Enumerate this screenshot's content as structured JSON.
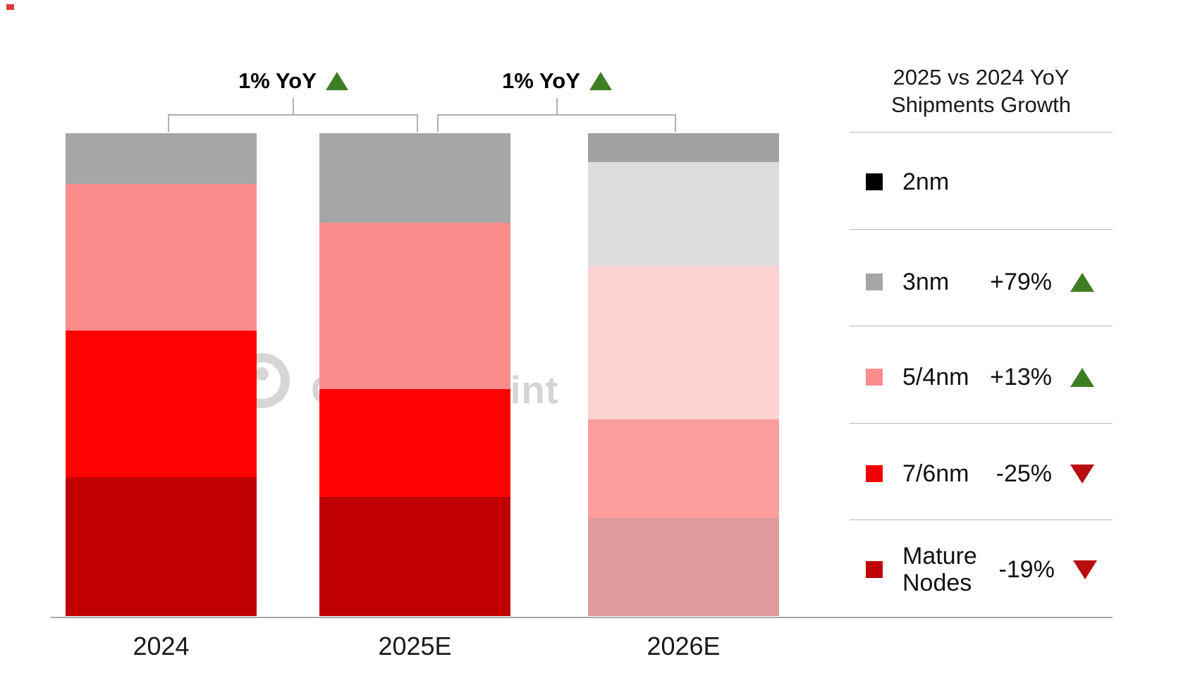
{
  "watermark": {
    "text": "Counterpoint"
  },
  "decor": {
    "corner_mark_color": "#e23b3b"
  },
  "colors": {
    "up_triangle": "#3f7d23",
    "down_triangle": "#b90d11",
    "bracket_line": "#b0b0b0",
    "axis_line": "#a8a8a8",
    "divider": "#b7b7b7",
    "node_colors": {
      "2nm": "#000000",
      "3nm": "#a6a6a6",
      "5/4nm": "#fc8d8d",
      "7/6nm": "#fe0101",
      "Mature Nodes": "#c00000"
    },
    "node_colors_faded": {
      "2nm": "#a1a1a1",
      "3nm": "#dddddd",
      "5/4nm": "#ffd2d3",
      "7/6nm": "#fc9d9d",
      "Mature Nodes": "#e09a9d"
    }
  },
  "growth_callouts": [
    {
      "text": "1% YoY",
      "direction": "up",
      "between": [
        "2024",
        "2025E"
      ]
    },
    {
      "text": "1% YoY",
      "direction": "up",
      "between": [
        "2025E",
        "2026E"
      ]
    }
  ],
  "legend": {
    "title_line1": "2025 vs 2024 YoY",
    "title_line2": "Shipments  Growth",
    "rows": [
      {
        "node": "2nm",
        "node_lines": [
          "2nm"
        ],
        "swatch": "#000000",
        "value": "",
        "direction": ""
      },
      {
        "node": "3nm",
        "node_lines": [
          "3nm"
        ],
        "swatch": "#a6a6a6",
        "value": "+79%",
        "direction": "up"
      },
      {
        "node": "5/4nm",
        "node_lines": [
          "5/4nm"
        ],
        "swatch": "#fc8d8d",
        "value": "+13%",
        "direction": "up"
      },
      {
        "node": "7/6nm",
        "node_lines": [
          "7/6nm"
        ],
        "swatch": "#f00001",
        "value": "-25%",
        "direction": "down"
      },
      {
        "node": "Mature Nodes",
        "node_lines": [
          "Mature",
          "Nodes"
        ],
        "swatch": "#c00006",
        "value": "-19%",
        "direction": "down"
      }
    ]
  },
  "chart_data": {
    "type": "bar",
    "stacked": true,
    "title": "",
    "categories": [
      "2024",
      "2025E",
      "2026E"
    ],
    "unit": "share of total bar height (%)",
    "series": [
      {
        "name": "2nm",
        "values": [
          0.0,
          0.0,
          6.0
        ]
      },
      {
        "name": "3nm",
        "values": [
          10.5,
          18.5,
          21.5
        ]
      },
      {
        "name": "5/4nm",
        "values": [
          30.4,
          34.5,
          31.8
        ]
      },
      {
        "name": "7/6nm",
        "values": [
          30.4,
          22.3,
          20.4
        ]
      },
      {
        "name": "Mature Nodes",
        "values": [
          28.8,
          24.7,
          20.3
        ]
      }
    ],
    "faded_categories": [
      "2026E"
    ],
    "totals_yoy_labels": [
      "",
      "1% YoY",
      "1% YoY"
    ],
    "legend_position": "right",
    "grid": false
  }
}
